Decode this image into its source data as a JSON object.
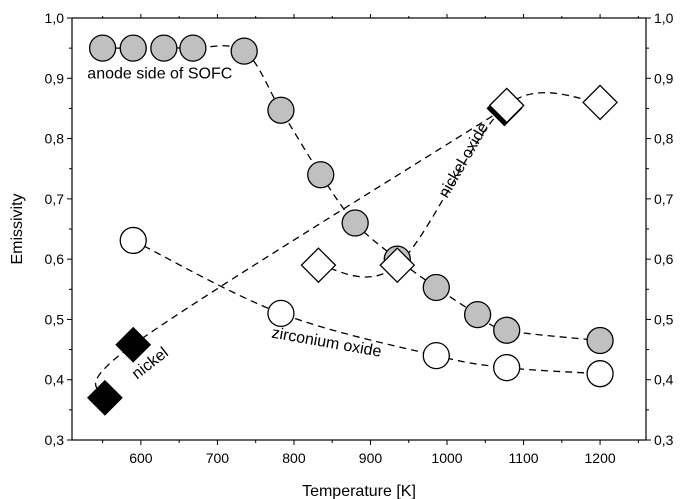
{
  "chart_data": {
    "type": "scatter",
    "xlabel": "Temperature [K]",
    "ylabel": "Emissivity",
    "xlim": [
      510,
      1260
    ],
    "ylim": [
      0.3,
      1.0
    ],
    "xticks": [
      600,
      700,
      800,
      900,
      1000,
      1100,
      1200
    ],
    "xtick_labels": [
      "600",
      "700",
      "800",
      "900",
      "1000",
      "1100",
      "1200"
    ],
    "yticks": [
      0.3,
      0.4,
      0.5,
      0.6,
      0.7,
      0.8,
      0.9,
      1.0
    ],
    "ytick_labels": [
      "0,3",
      "0,4",
      "0,5",
      "0,6",
      "0,7",
      "0,8",
      "0,9",
      "1,0"
    ],
    "right_axis_mirror": true,
    "grid": false,
    "legend": "none",
    "series": [
      {
        "name": "anode side of SOFC",
        "marker": "circle",
        "fill": "#c0c0c0",
        "line": "dashed",
        "x": [
          550,
          590,
          630,
          668,
          735,
          783,
          835,
          880,
          935,
          986,
          1040,
          1078,
          1200
        ],
        "y": [
          0.95,
          0.95,
          0.95,
          0.95,
          0.945,
          0.847,
          0.74,
          0.66,
          0.6,
          0.553,
          0.508,
          0.482,
          0.465
        ]
      },
      {
        "name": "zirconium oxide",
        "marker": "circle",
        "fill": "#ffffff",
        "line": "dashed",
        "x": [
          590,
          783,
          986,
          1078,
          1200
        ],
        "y": [
          0.631,
          0.51,
          0.44,
          0.42,
          0.41
        ]
      },
      {
        "name": "nickel",
        "marker": "diamond",
        "fill": "#000000",
        "line": "dashed",
        "x": [
          553,
          590,
          1075
        ],
        "y": [
          0.37,
          0.458,
          0.85
        ]
      },
      {
        "name": "nickel oxide",
        "marker": "diamond",
        "fill": "#ffffff",
        "line": "dashed",
        "x": [
          832,
          935,
          1078,
          1200
        ],
        "y": [
          0.59,
          0.59,
          0.855,
          0.86
        ]
      }
    ],
    "annotations": [
      {
        "text": "anode side of SOFC",
        "x": 530,
        "y": 0.9,
        "rotate": 0
      },
      {
        "text": "nickel oxide",
        "x": 1000,
        "y": 0.7,
        "rotate": -60
      },
      {
        "text": "zirconium oxide",
        "x": 770,
        "y": 0.47,
        "rotate": 10
      },
      {
        "text": "nickel",
        "x": 595,
        "y": 0.4,
        "rotate": -38
      }
    ]
  }
}
